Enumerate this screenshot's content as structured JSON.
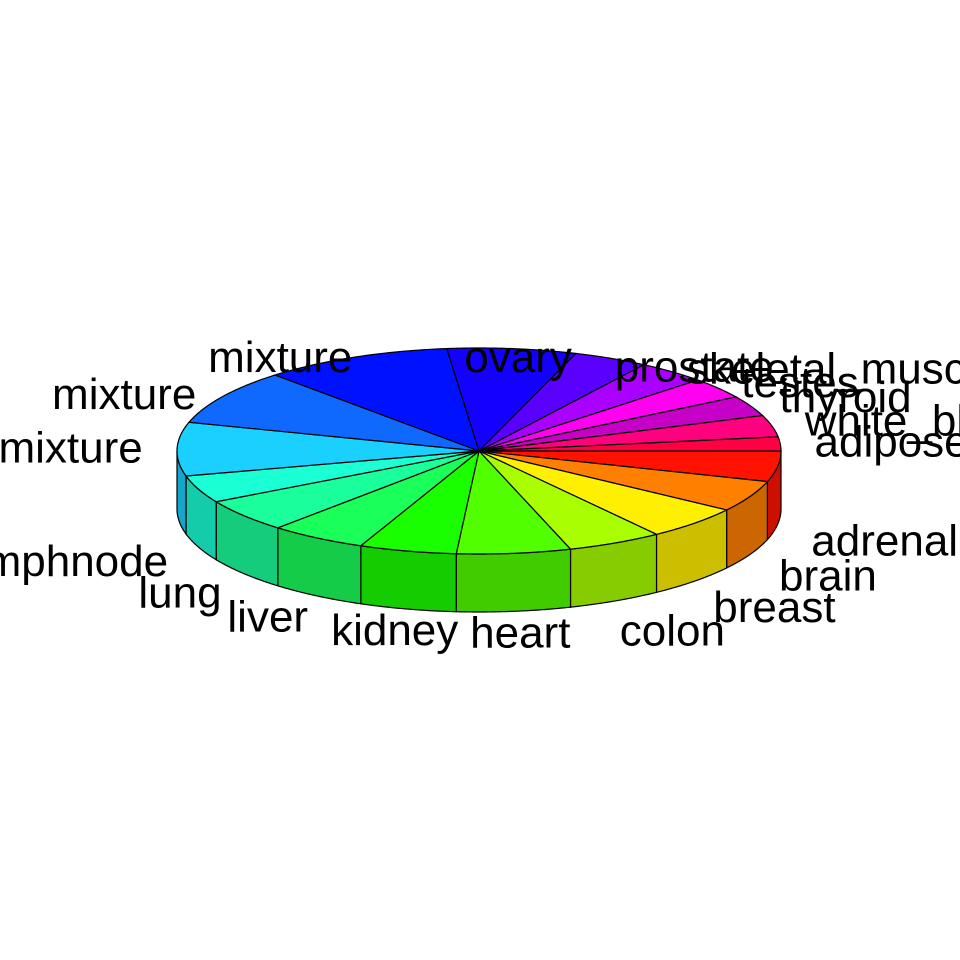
{
  "chart_data": {
    "type": "pie",
    "three_d": true,
    "start_angle_deg": 0,
    "direction": "counterclockwise",
    "legend": "none",
    "categories": [
      "adrenal",
      "brain",
      "breast",
      "colon",
      "heart",
      "kidney",
      "liver",
      "lung",
      "lymphnode",
      "mixture",
      "mixture",
      "mixture",
      "ovary",
      "prostate",
      "skeletal_muscle",
      "testes",
      "thyroid",
      "white_blood_",
      "adipose"
    ],
    "values": [
      4.8,
      4.9,
      5.3,
      5.1,
      6.1,
      5.2,
      5.2,
      5.2,
      4.3,
      8.4,
      8.7,
      10.1,
      6.9,
      4.0,
      3.7,
      3.3,
      3.2,
      3.4,
      2.2
    ],
    "colors": [
      "#ff1300",
      "#ff8000",
      "#ffef00",
      "#a9ff00",
      "#51ff00",
      "#1aff00",
      "#1aff5a",
      "#1aff9c",
      "#1affd4",
      "#1ad0ff",
      "#1069ff",
      "#0011ff",
      "#1300ff",
      "#5a00ff",
      "#a900ff",
      "#ff00f0",
      "#c600c6",
      "#ff007f",
      "#ff0044"
    ]
  }
}
